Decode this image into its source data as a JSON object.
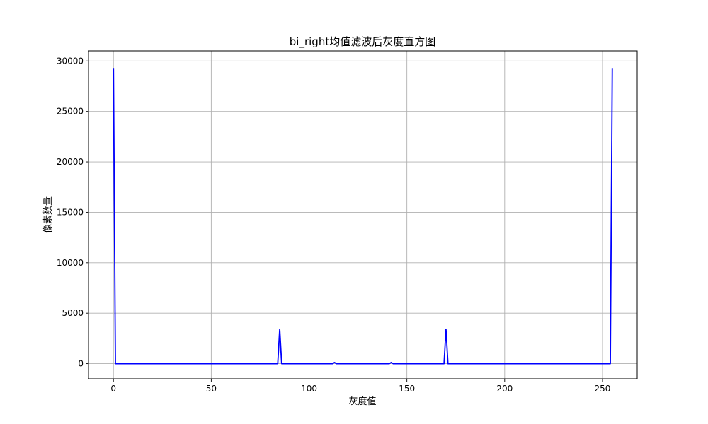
{
  "chart_data": {
    "type": "line",
    "title": "bi_right均值滤波后灰度直方图",
    "xlabel": "灰度值",
    "ylabel": "像素数量",
    "xlim": [
      -12.75,
      267.75
    ],
    "ylim": [
      -1500,
      31000
    ],
    "xticks": [
      0,
      50,
      100,
      150,
      200,
      250
    ],
    "yticks": [
      0,
      5000,
      10000,
      15000,
      20000,
      25000,
      30000
    ],
    "grid": true,
    "colors": {
      "line": "#0000ff",
      "grid": "#b0b0b0"
    },
    "series": [
      {
        "x": [
          0,
          1,
          84,
          85,
          86,
          112,
          113,
          114,
          141,
          142,
          143,
          169,
          170,
          171,
          254,
          255
        ],
        "y": [
          29300,
          0,
          0,
          3400,
          0,
          0,
          120,
          0,
          0,
          120,
          0,
          0,
          3400,
          0,
          0,
          29300
        ]
      }
    ]
  }
}
